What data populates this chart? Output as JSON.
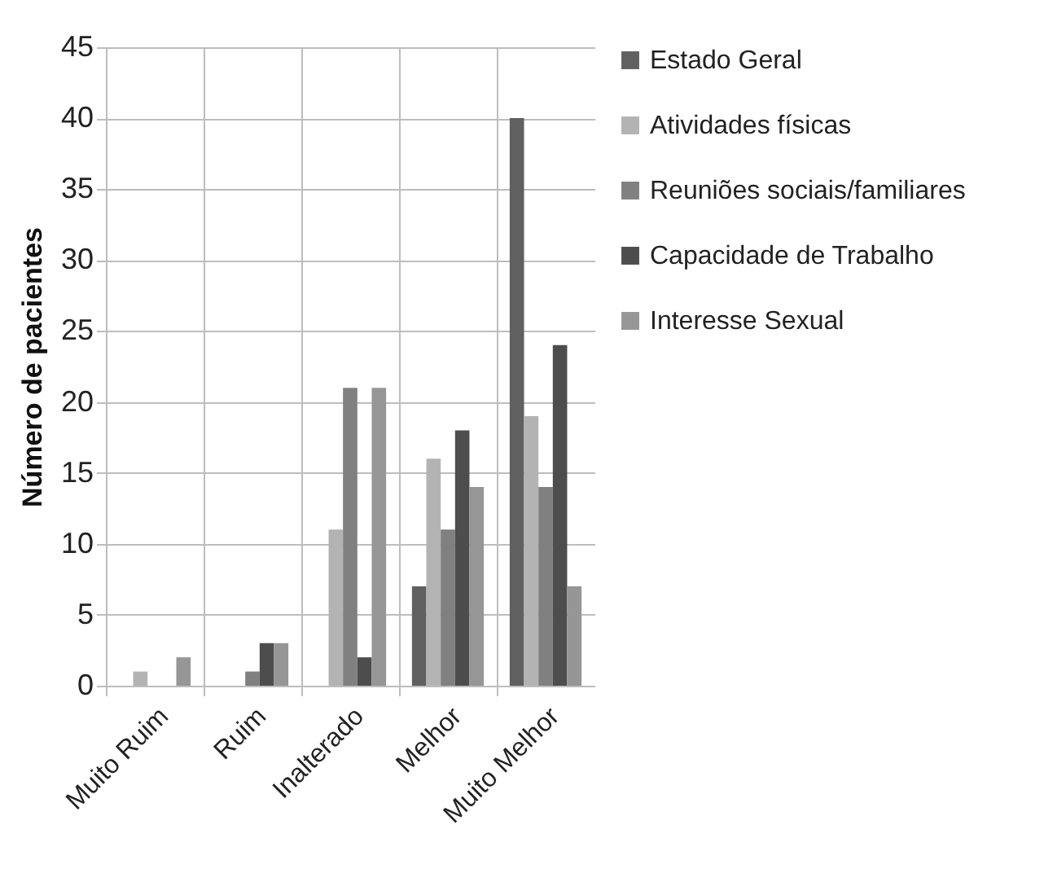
{
  "chart_data": {
    "type": "bar",
    "ylabel": "Número de pacientes",
    "categories": [
      "Muito Ruim",
      "Ruim",
      "Inalterado",
      "Melhor",
      "Muito Melhor"
    ],
    "series": [
      {
        "name": "Estado Geral",
        "color": "#606060",
        "values": [
          0,
          0,
          0,
          7,
          40
        ]
      },
      {
        "name": "Atividades físicas",
        "color": "#b3b3b3",
        "values": [
          1,
          0,
          11,
          16,
          19
        ]
      },
      {
        "name": "Reuniões sociais/familiares",
        "color": "#808080",
        "values": [
          0,
          1,
          21,
          11,
          14
        ]
      },
      {
        "name": "Capacidade de Trabalho",
        "color": "#4d4d4d",
        "values": [
          0,
          3,
          2,
          18,
          24
        ]
      },
      {
        "name": "Interesse Sexual",
        "color": "#969696",
        "values": [
          2,
          3,
          21,
          14,
          7
        ]
      }
    ],
    "ylim": [
      0,
      45
    ],
    "yticks": [
      0,
      5,
      10,
      15,
      20,
      25,
      30,
      35,
      40,
      45
    ],
    "grid": true,
    "legend": "right"
  }
}
